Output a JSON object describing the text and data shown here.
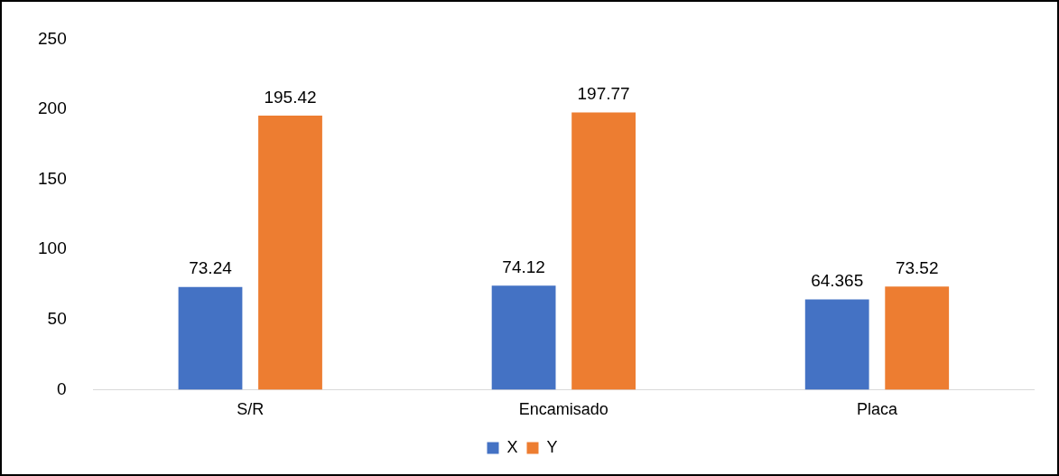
{
  "chart_data": {
    "type": "bar",
    "categories": [
      "S/R",
      "Encamisado",
      "Placa"
    ],
    "series": [
      {
        "name": "X",
        "color": "#4472c4",
        "values": [
          73.24,
          74.12,
          64.365
        ]
      },
      {
        "name": "Y",
        "color": "#ed7d31",
        "values": [
          195.42,
          197.77,
          73.52
        ]
      }
    ],
    "ylim": [
      0,
      250
    ],
    "yticks": [
      0,
      50,
      100,
      150,
      200,
      250
    ],
    "grid": false,
    "legend": "bottom",
    "data_labels": true
  }
}
